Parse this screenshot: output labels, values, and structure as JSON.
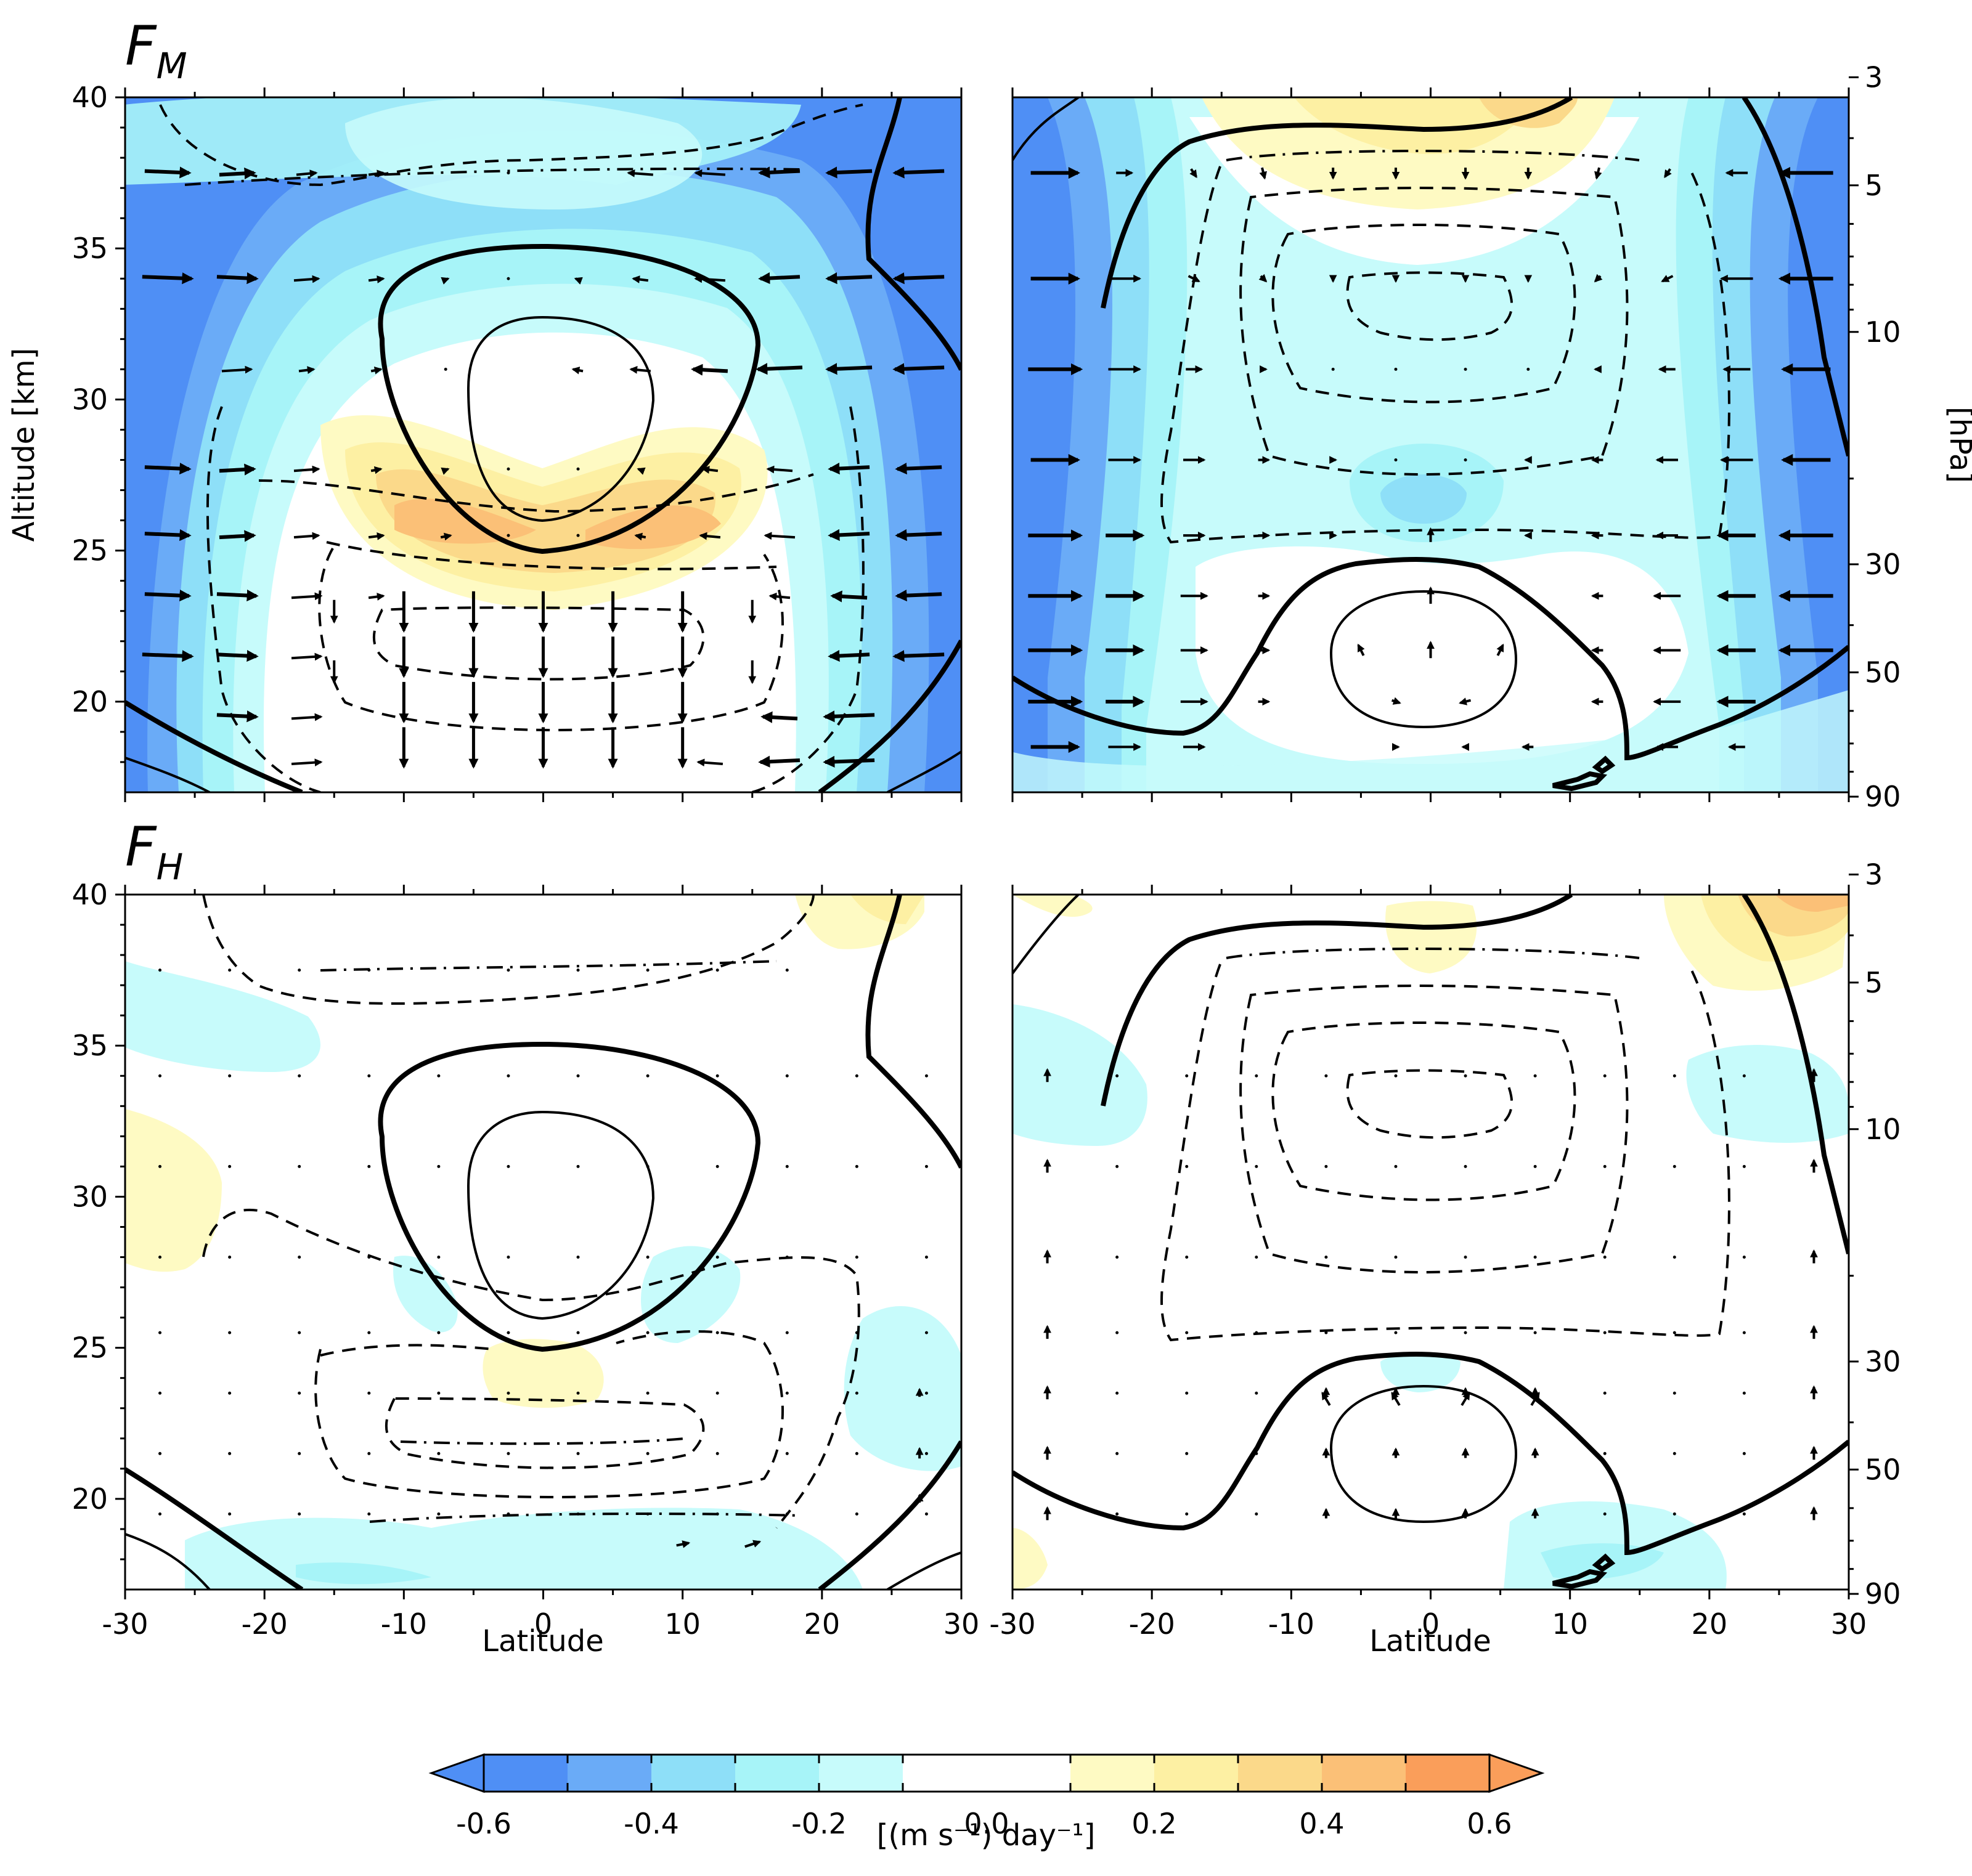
{
  "chart_data": [
    {
      "type": "heatmap",
      "panel": "top-left",
      "title": "F",
      "title_subscript": "M",
      "xlabel": "",
      "ylabel": "Altitude [km]",
      "xlim": [
        -30,
        30
      ],
      "ylim": [
        17,
        40
      ],
      "yticks": [
        "20",
        "25",
        "30",
        "35",
        "40"
      ],
      "field": [
        {
          "lat": 0,
          "alt": 26,
          "value": 0.35
        },
        {
          "lat": -8,
          "alt": 25.8,
          "value": 0.4
        },
        {
          "lat": 8,
          "alt": 25.8,
          "value": 0.4
        },
        {
          "lat": 0,
          "alt": 21,
          "value": 0.0
        },
        {
          "lat": 0,
          "alt": 30,
          "value": 0.0
        },
        {
          "lat": -25,
          "alt": 30,
          "value": -0.6
        },
        {
          "lat": 25,
          "alt": 30,
          "value": -0.6
        },
        {
          "lat": -20,
          "alt": 38,
          "value": -0.6
        },
        {
          "lat": 22,
          "alt": 38,
          "value": -0.6
        }
      ],
      "vectors": "horizontal arrows pointing toward equator at upper levels; downward arrows below 24 km"
    },
    {
      "type": "heatmap",
      "panel": "top-right",
      "xlim": [
        -30,
        30
      ],
      "ylim": [
        17,
        40
      ],
      "y2label": "[hPa]",
      "y2ticks": [
        "3",
        "5",
        "10",
        "30",
        "50",
        "90"
      ],
      "field": [
        {
          "lat": 0,
          "alt": 39,
          "value": 0.2
        },
        {
          "lat": 0,
          "alt": 26,
          "value": -0.3
        },
        {
          "lat": 0,
          "alt": 21,
          "value": 0.0
        },
        {
          "lat": -27,
          "alt": 32,
          "value": -0.6
        },
        {
          "lat": 27,
          "alt": 32,
          "value": -0.6
        }
      ],
      "vectors": "horizontal arrows pointing toward equator; upward arrows near equator 20-26 km"
    },
    {
      "type": "heatmap",
      "panel": "bottom-left",
      "title": "F",
      "title_subscript": "H",
      "xlabel": "Latitude",
      "xlim": [
        -30,
        30
      ],
      "ylim": [
        17,
        40
      ],
      "xticks": [
        "-30",
        "-20",
        "-10",
        "0",
        "10",
        "20",
        "30"
      ],
      "yticks": [
        "20",
        "25",
        "30",
        "35",
        "40"
      ],
      "field": [
        {
          "lat": 0,
          "alt": 24.5,
          "value": 0.2
        },
        {
          "lat": -28,
          "alt": 30,
          "value": 0.1
        },
        {
          "lat": 22,
          "alt": 39.5,
          "value": 0.2
        },
        {
          "lat": -8,
          "alt": 26.5,
          "value": -0.2
        },
        {
          "lat": 10,
          "alt": 27,
          "value": -0.2
        },
        {
          "lat": -15,
          "alt": 18,
          "value": -0.3
        }
      ]
    },
    {
      "type": "heatmap",
      "panel": "bottom-right",
      "xlabel": "Latitude",
      "xlim": [
        -30,
        30
      ],
      "ylim": [
        17,
        40
      ],
      "xticks": [
        "-30",
        "-20",
        "-10",
        "0",
        "10",
        "20",
        "30"
      ],
      "y2ticks": [
        "3",
        "5",
        "10",
        "30",
        "50",
        "90"
      ],
      "field": [
        {
          "lat": 0,
          "alt": 39,
          "value": 0.1
        },
        {
          "lat": 26,
          "alt": 39,
          "value": 0.45
        },
        {
          "lat": 15,
          "alt": 18.5,
          "value": -0.3
        },
        {
          "lat": -26,
          "alt": 34,
          "value": -0.2
        },
        {
          "lat": 26,
          "alt": 33,
          "value": -0.2
        }
      ]
    }
  ],
  "colorbar": {
    "label": "[(m s⁻¹) day⁻¹]",
    "ticks": [
      "-0.6",
      "-0.4",
      "-0.2",
      "0.0",
      "0.2",
      "0.4",
      "0.6"
    ],
    "levels": [
      -0.6,
      -0.5,
      -0.4,
      -0.3,
      -0.2,
      -0.1,
      0.1,
      0.2,
      0.3,
      0.4,
      0.5,
      0.6
    ],
    "colors": [
      "#4f8ff5",
      "#6aabf7",
      "#8edff8",
      "#a7f4f8",
      "#c7fbfb",
      "#ffffff",
      "#fefac3",
      "#fdf0a3",
      "#fbd98a",
      "#fbc077",
      "#fa9e5a"
    ],
    "under_color": "#4f8ff5",
    "over_color": "#fa9e5a"
  }
}
